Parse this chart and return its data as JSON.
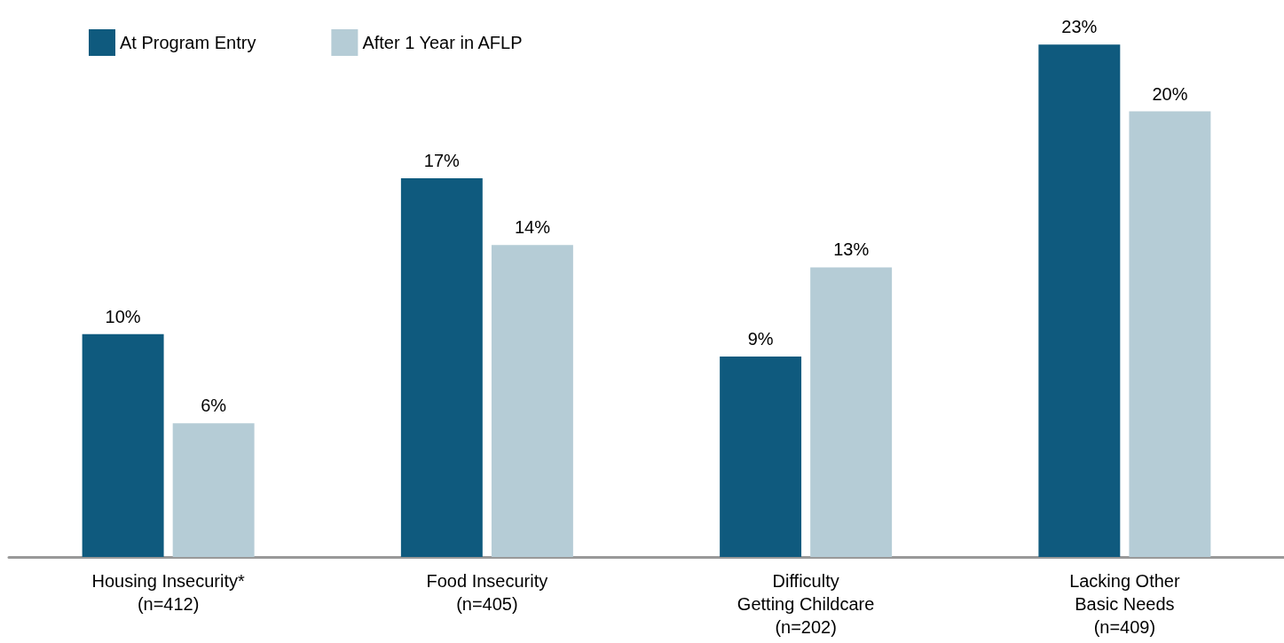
{
  "chart_data": {
    "type": "bar",
    "categories": [
      "Housing Insecurity*\n(n=412)",
      "Food Insecurity\n(n=405)",
      "Difficulty\nGetting Childcare\n(n=202)",
      "Lacking Other\nBasic Needs\n(n=409)"
    ],
    "series": [
      {
        "name": "At Program Entry",
        "color": "#0f5a7e",
        "values": [
          10,
          17,
          9,
          23
        ],
        "value_labels": [
          "10%",
          "17%",
          "9%",
          "23%"
        ]
      },
      {
        "name": "After 1 Year in AFLP",
        "color": "#b5ccd6",
        "values": [
          6,
          14,
          13,
          20
        ],
        "value_labels": [
          "6%",
          "14%",
          "13%",
          "20%"
        ]
      }
    ],
    "legend": "top left"
  }
}
